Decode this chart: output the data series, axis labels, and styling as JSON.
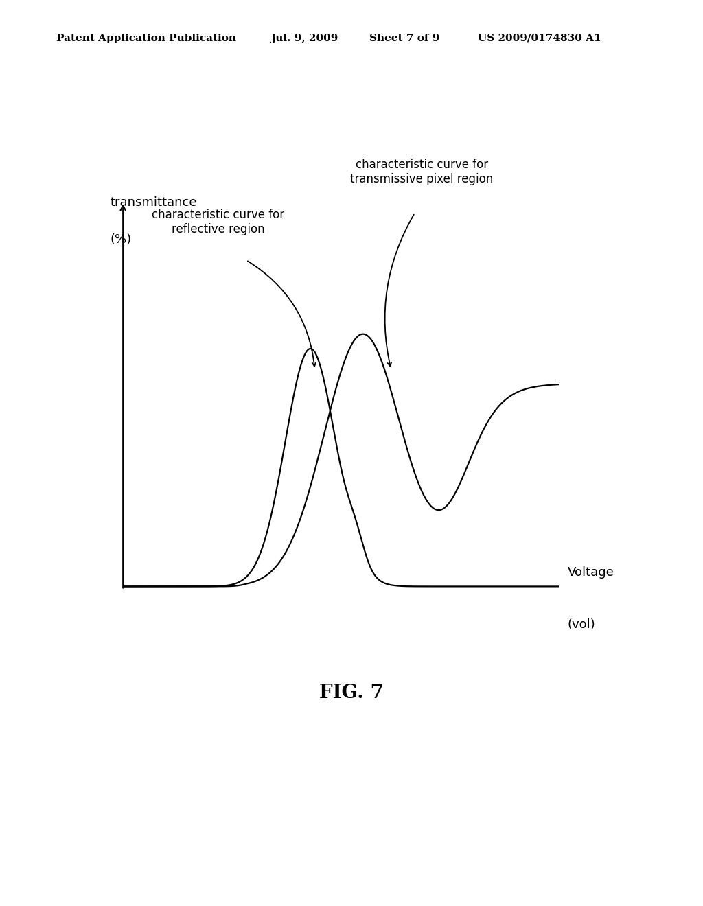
{
  "background_color": "#ffffff",
  "header_text": "Patent Application Publication",
  "header_date": "Jul. 9, 2009",
  "header_sheet": "Sheet 7 of 9",
  "header_patent": "US 2009/0174830 A1",
  "fig_label": "FIG. 7",
  "ylabel_line1": "transmittance",
  "ylabel_line2": "(%)",
  "xlabel_line1": "Voltage",
  "xlabel_line2": "(vol)",
  "annotation_reflective": "characteristic curve for\nreflective region",
  "annotation_transmissive": "characteristic curve for\ntransmissive pixel region",
  "line_color": "#000000",
  "axis_color": "#000000",
  "font_size_header": 11,
  "font_size_axis_label": 13,
  "font_size_fig": 20,
  "font_size_annot": 12
}
